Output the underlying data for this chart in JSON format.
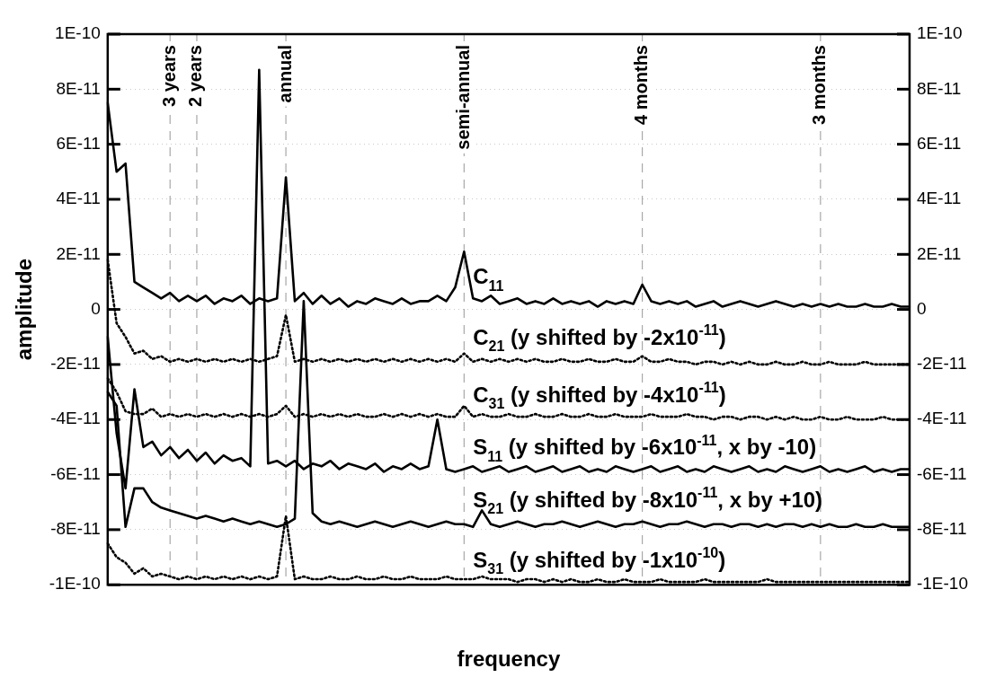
{
  "chart_data": {
    "type": "line",
    "xlabel": "frequency",
    "ylabel": "amplitude",
    "ylim": [
      -1e-10,
      1e-10
    ],
    "yticks": [
      {
        "value": -1e-10,
        "label": "-1E-10"
      },
      {
        "value": -8e-11,
        "label": "-8E-11"
      },
      {
        "value": -6e-11,
        "label": "-6E-11"
      },
      {
        "value": -4e-11,
        "label": "-4E-11"
      },
      {
        "value": -2e-11,
        "label": "-2E-11"
      },
      {
        "value": 0,
        "label": "0"
      },
      {
        "value": 2e-11,
        "label": "2E-11"
      },
      {
        "value": 4e-11,
        "label": "4E-11"
      },
      {
        "value": 6e-11,
        "label": "6E-11"
      },
      {
        "value": 8e-11,
        "label": "8E-11"
      },
      {
        "value": 1e-10,
        "label": "1E-10"
      }
    ],
    "y2lim": [
      -1e-10,
      1e-10
    ],
    "y2ticks": [
      {
        "value": -1e-10,
        "label": "-1E-10"
      },
      {
        "value": -8e-11,
        "label": "-8E-11"
      },
      {
        "value": -6e-11,
        "label": "-6E-11"
      },
      {
        "value": -4e-11,
        "label": "-4E-11"
      },
      {
        "value": -2e-11,
        "label": "-2E-11"
      },
      {
        "value": 0,
        "label": "0"
      },
      {
        "value": 2e-11,
        "label": "2E-11"
      },
      {
        "value": 4e-11,
        "label": "4E-11"
      },
      {
        "value": 6e-11,
        "label": "6E-11"
      },
      {
        "value": 8e-11,
        "label": "8E-11"
      },
      {
        "value": 1e-10,
        "label": "1E-10"
      }
    ],
    "categories": [
      null,
      null,
      null,
      null,
      null,
      null,
      null,
      "3 years",
      null,
      null,
      "2 years",
      null,
      null,
      null,
      null,
      null,
      null,
      null,
      null,
      null,
      "annual",
      null,
      null,
      null,
      null,
      null,
      null,
      null,
      null,
      null,
      null,
      null,
      null,
      null,
      null,
      null,
      null,
      null,
      null,
      null,
      "semi-annual",
      null,
      null,
      null,
      null,
      null,
      null,
      null,
      null,
      null,
      null,
      null,
      null,
      null,
      null,
      null,
      null,
      null,
      null,
      null,
      "4 months",
      null,
      null,
      null,
      null,
      null,
      null,
      null,
      null,
      null,
      null,
      null,
      null,
      null,
      null,
      null,
      null,
      null,
      null,
      null,
      "3 months",
      null,
      null,
      null,
      null,
      null,
      null,
      null,
      null,
      null,
      null
    ],
    "grid": true,
    "legend": false,
    "marker": "none",
    "annotations": [
      "C$_{11}$",
      "C$_{21}$ (y shifted by -2x10$^{-11}$)",
      "C$_{31}$ (y shifted by -4x10$^{-11}$)",
      "S$_{11}$ (y shifted by -6x10$^{-11}$, x by -10)",
      "S$_{21}$ (y shifted by -8x10$^{-11}$, x by +10)",
      "S$_{31}$ (y shifted by -1x10$^{-10}$)"
    ],
    "series": [
      {
        "color": "#000000",
        "line_style": "solid",
        "values": [
          7.5e-11,
          5e-11,
          5.3e-11,
          1e-11,
          8e-12,
          6e-12,
          4e-12,
          6e-12,
          3e-12,
          5e-12,
          3e-12,
          5e-12,
          2e-12,
          4e-12,
          3e-12,
          5e-12,
          2e-12,
          4e-12,
          3e-12,
          4e-12,
          4.8e-11,
          3e-12,
          6e-12,
          2e-12,
          5e-12,
          2e-12,
          4e-12,
          1e-12,
          3e-12,
          2e-12,
          4e-12,
          3e-12,
          2e-12,
          4e-12,
          2e-12,
          3e-12,
          3e-12,
          5e-12,
          3e-12,
          8e-12,
          2.1e-11,
          4e-12,
          3e-12,
          5e-12,
          2e-12,
          3e-12,
          4e-12,
          2e-12,
          3e-12,
          2e-12,
          4e-12,
          2e-12,
          3e-12,
          2e-12,
          3e-12,
          1e-12,
          3e-12,
          2e-12,
          3e-12,
          2e-12,
          9e-12,
          3e-12,
          2e-12,
          3e-12,
          2e-12,
          3e-12,
          1e-12,
          2e-12,
          3e-12,
          1e-12,
          2e-12,
          3e-12,
          2e-12,
          1e-12,
          2e-12,
          3e-12,
          2e-12,
          1e-12,
          2e-12,
          1e-12,
          2e-12,
          1e-12,
          2e-12,
          1e-12,
          1e-12,
          2e-12,
          1e-12,
          1e-12,
          2e-12,
          1e-12,
          1e-12
        ]
      },
      {
        "color": "#000000",
        "line_style": "dotted",
        "values": [
          1.8e-11,
          -5e-12,
          -1e-11,
          -1.6e-11,
          -1.5e-11,
          -1.8e-11,
          -1.7e-11,
          -1.9e-11,
          -1.8e-11,
          -1.9e-11,
          -1.8e-11,
          -1.9e-11,
          -1.8e-11,
          -1.9e-11,
          -1.8e-11,
          -1.9e-11,
          -1.8e-11,
          -1.9e-11,
          -1.8e-11,
          -1.7e-11,
          -2e-12,
          -1.9e-11,
          -1.8e-11,
          -1.9e-11,
          -1.8e-11,
          -1.9e-11,
          -1.8e-11,
          -1.9e-11,
          -1.8e-11,
          -1.9e-11,
          -1.8e-11,
          -1.9e-11,
          -1.8e-11,
          -1.9e-11,
          -1.8e-11,
          -1.9e-11,
          -1.8e-11,
          -1.9e-11,
          -1.8e-11,
          -1.9e-11,
          -1.6e-11,
          -1.9e-11,
          -1.8e-11,
          -1.9e-11,
          -1.8e-11,
          -1.9e-11,
          -1.8e-11,
          -1.9e-11,
          -1.8e-11,
          -1.9e-11,
          -1.9e-11,
          -1.8e-11,
          -1.9e-11,
          -1.9e-11,
          -1.8e-11,
          -1.9e-11,
          -1.9e-11,
          -1.8e-11,
          -1.9e-11,
          -1.9e-11,
          -1.7e-11,
          -1.9e-11,
          -1.9e-11,
          -1.8e-11,
          -1.9e-11,
          -1.9e-11,
          -2e-11,
          -1.9e-11,
          -1.9e-11,
          -2e-11,
          -1.9e-11,
          -2e-11,
          -1.9e-11,
          -2e-11,
          -2e-11,
          -1.9e-11,
          -2e-11,
          -2e-11,
          -1.9e-11,
          -2e-11,
          -2e-11,
          -1.9e-11,
          -2e-11,
          -2e-11,
          -2e-11,
          -1.9e-11,
          -2e-11,
          -2e-11,
          -2e-11,
          -2e-11,
          -2e-11
        ]
      },
      {
        "color": "#000000",
        "line_style": "dotted",
        "values": [
          -2.5e-11,
          -3e-11,
          -3.7e-11,
          -3.8e-11,
          -3.8e-11,
          -3.6e-11,
          -3.9e-11,
          -3.8e-11,
          -3.9e-11,
          -3.8e-11,
          -3.9e-11,
          -3.8e-11,
          -3.9e-11,
          -3.8e-11,
          -3.9e-11,
          -3.8e-11,
          -3.9e-11,
          -3.8e-11,
          -3.9e-11,
          -3.8e-11,
          -3.5e-11,
          -3.9e-11,
          -3.8e-11,
          -3.9e-11,
          -3.8e-11,
          -3.9e-11,
          -3.8e-11,
          -3.9e-11,
          -3.8e-11,
          -3.9e-11,
          -3.9e-11,
          -3.8e-11,
          -3.9e-11,
          -3.8e-11,
          -3.9e-11,
          -3.8e-11,
          -3.9e-11,
          -3.8e-11,
          -3.9e-11,
          -3.9e-11,
          -3.5e-11,
          -3.9e-11,
          -3.8e-11,
          -3.9e-11,
          -3.9e-11,
          -3.8e-11,
          -3.9e-11,
          -3.9e-11,
          -3.8e-11,
          -3.9e-11,
          -3.9e-11,
          -3.8e-11,
          -3.9e-11,
          -3.9e-11,
          -3.8e-11,
          -3.9e-11,
          -3.9e-11,
          -3.8e-11,
          -3.9e-11,
          -3.9e-11,
          -3.9e-11,
          -3.8e-11,
          -3.9e-11,
          -3.9e-11,
          -3.9e-11,
          -3.8e-11,
          -3.9e-11,
          -3.9e-11,
          -4e-11,
          -3.9e-11,
          -3.9e-11,
          -4e-11,
          -3.9e-11,
          -3.9e-11,
          -4e-11,
          -3.9e-11,
          -4e-11,
          -3.9e-11,
          -4e-11,
          -4e-11,
          -3.9e-11,
          -4e-11,
          -4e-11,
          -3.9e-11,
          -4e-11,
          -4e-11,
          -4e-11,
          -3.9e-11,
          -4e-11,
          -4e-11,
          -4e-11
        ]
      },
      {
        "color": "#000000",
        "line_style": "solid",
        "values": [
          -1e-11,
          -4.5e-11,
          -6.5e-11,
          -2.9e-11,
          -5e-11,
          -4.8e-11,
          -5.3e-11,
          -5e-11,
          -5.4e-11,
          -5.1e-11,
          -5.5e-11,
          -5.2e-11,
          -5.6e-11,
          -5.3e-11,
          -5.5e-11,
          -5.4e-11,
          -5.7e-11,
          8.7e-11,
          -5.6e-11,
          -5.5e-11,
          -5.7e-11,
          -5.5e-11,
          -5.8e-11,
          -5.6e-11,
          -5.7e-11,
          -5.5e-11,
          -5.8e-11,
          -5.6e-11,
          -5.7e-11,
          -5.8e-11,
          -5.6e-11,
          -5.9e-11,
          -5.7e-11,
          -5.8e-11,
          -5.6e-11,
          -5.8e-11,
          -5.7e-11,
          -4e-11,
          -5.8e-11,
          -5.9e-11,
          -5.8e-11,
          -5.7e-11,
          -5.9e-11,
          -5.8e-11,
          -5.7e-11,
          -5.9e-11,
          -5.8e-11,
          -5.7e-11,
          -5.9e-11,
          -5.8e-11,
          -5.7e-11,
          -5.9e-11,
          -5.8e-11,
          -5.7e-11,
          -5.9e-11,
          -5.8e-11,
          -5.9e-11,
          -5.7e-11,
          -5.8e-11,
          -5.9e-11,
          -5.8e-11,
          -5.7e-11,
          -5.9e-11,
          -5.8e-11,
          -5.7e-11,
          -5.9e-11,
          -5.8e-11,
          -5.9e-11,
          -5.7e-11,
          -5.8e-11,
          -5.9e-11,
          -5.8e-11,
          -5.7e-11,
          -5.9e-11,
          -5.8e-11,
          -5.9e-11,
          -5.7e-11,
          -5.8e-11,
          -5.9e-11,
          -5.8e-11,
          -5.7e-11,
          -5.9e-11,
          -5.8e-11,
          -5.9e-11,
          -5.8e-11,
          -5.7e-11,
          -5.9e-11,
          -5.8e-11,
          -5.9e-11,
          -5.8e-11,
          -5.8e-11
        ]
      },
      {
        "color": "#000000",
        "line_style": "solid",
        "values": [
          -3e-11,
          -3.5e-11,
          -7.9e-11,
          -6.5e-11,
          -6.5e-11,
          -7e-11,
          -7.2e-11,
          -7.3e-11,
          -7.4e-11,
          -7.5e-11,
          -7.6e-11,
          -7.5e-11,
          -7.6e-11,
          -7.7e-11,
          -7.6e-11,
          -7.7e-11,
          -7.8e-11,
          -7.7e-11,
          -7.8e-11,
          -7.9e-11,
          -7.8e-11,
          -7.6e-11,
          3e-12,
          -7.4e-11,
          -7.7e-11,
          -7.8e-11,
          -7.7e-11,
          -7.8e-11,
          -7.9e-11,
          -7.8e-11,
          -7.7e-11,
          -7.8e-11,
          -7.9e-11,
          -7.8e-11,
          -7.7e-11,
          -7.8e-11,
          -7.9e-11,
          -7.8e-11,
          -7.7e-11,
          -7.8e-11,
          -7.8e-11,
          -7.9e-11,
          -7.3e-11,
          -7.8e-11,
          -7.9e-11,
          -7.8e-11,
          -7.7e-11,
          -7.8e-11,
          -7.9e-11,
          -7.8e-11,
          -7.8e-11,
          -7.7e-11,
          -7.8e-11,
          -7.9e-11,
          -7.8e-11,
          -7.7e-11,
          -7.8e-11,
          -7.9e-11,
          -7.8e-11,
          -7.8e-11,
          -7.7e-11,
          -7.8e-11,
          -7.9e-11,
          -7.8e-11,
          -7.8e-11,
          -7.7e-11,
          -7.8e-11,
          -7.9e-11,
          -7.8e-11,
          -7.8e-11,
          -7.9e-11,
          -7.8e-11,
          -7.8e-11,
          -7.9e-11,
          -7.8e-11,
          -7.9e-11,
          -7.8e-11,
          -7.8e-11,
          -7.9e-11,
          -7.8e-11,
          -7.9e-11,
          -7.8e-11,
          -7.9e-11,
          -7.9e-11,
          -7.8e-11,
          -7.9e-11,
          -7.9e-11,
          -7.8e-11,
          -7.9e-11,
          -7.9e-11,
          -7.9e-11
        ]
      },
      {
        "color": "#000000",
        "line_style": "dotted",
        "values": [
          -8.5e-11,
          -9e-11,
          -9.2e-11,
          -9.6e-11,
          -9.4e-11,
          -9.7e-11,
          -9.6e-11,
          -9.7e-11,
          -9.8e-11,
          -9.7e-11,
          -9.8e-11,
          -9.7e-11,
          -9.8e-11,
          -9.7e-11,
          -9.8e-11,
          -9.7e-11,
          -9.8e-11,
          -9.7e-11,
          -9.8e-11,
          -9.7e-11,
          -7.5e-11,
          -9.8e-11,
          -9.7e-11,
          -9.8e-11,
          -9.8e-11,
          -9.7e-11,
          -9.8e-11,
          -9.8e-11,
          -9.7e-11,
          -9.8e-11,
          -9.8e-11,
          -9.7e-11,
          -9.8e-11,
          -9.8e-11,
          -9.7e-11,
          -9.8e-11,
          -9.8e-11,
          -9.8e-11,
          -9.7e-11,
          -9.8e-11,
          -9.8e-11,
          -9.8e-11,
          -9.7e-11,
          -9.8e-11,
          -9.8e-11,
          -9.8e-11,
          -9.9e-11,
          -9.8e-11,
          -9.8e-11,
          -9.9e-11,
          -9.8e-11,
          -9.9e-11,
          -9.8e-11,
          -9.9e-11,
          -9.9e-11,
          -9.8e-11,
          -9.9e-11,
          -9.9e-11,
          -9.8e-11,
          -9.9e-11,
          -9.9e-11,
          -9.9e-11,
          -9.8e-11,
          -9.9e-11,
          -9.9e-11,
          -9.9e-11,
          -9.9e-11,
          -9.8e-11,
          -9.9e-11,
          -9.9e-11,
          -9.9e-11,
          -9.9e-11,
          -9.9e-11,
          -9.9e-11,
          -9.8e-11,
          -9.9e-11,
          -9.9e-11,
          -9.9e-11,
          -9.9e-11,
          -9.9e-11,
          -9.9e-11,
          -9.9e-11,
          -9.9e-11,
          -9.9e-11,
          -9.9e-11,
          -9.9e-11,
          -9.9e-11,
          -9.9e-11,
          -9.9e-11,
          -9.9e-11,
          -9.9e-11
        ]
      }
    ]
  }
}
